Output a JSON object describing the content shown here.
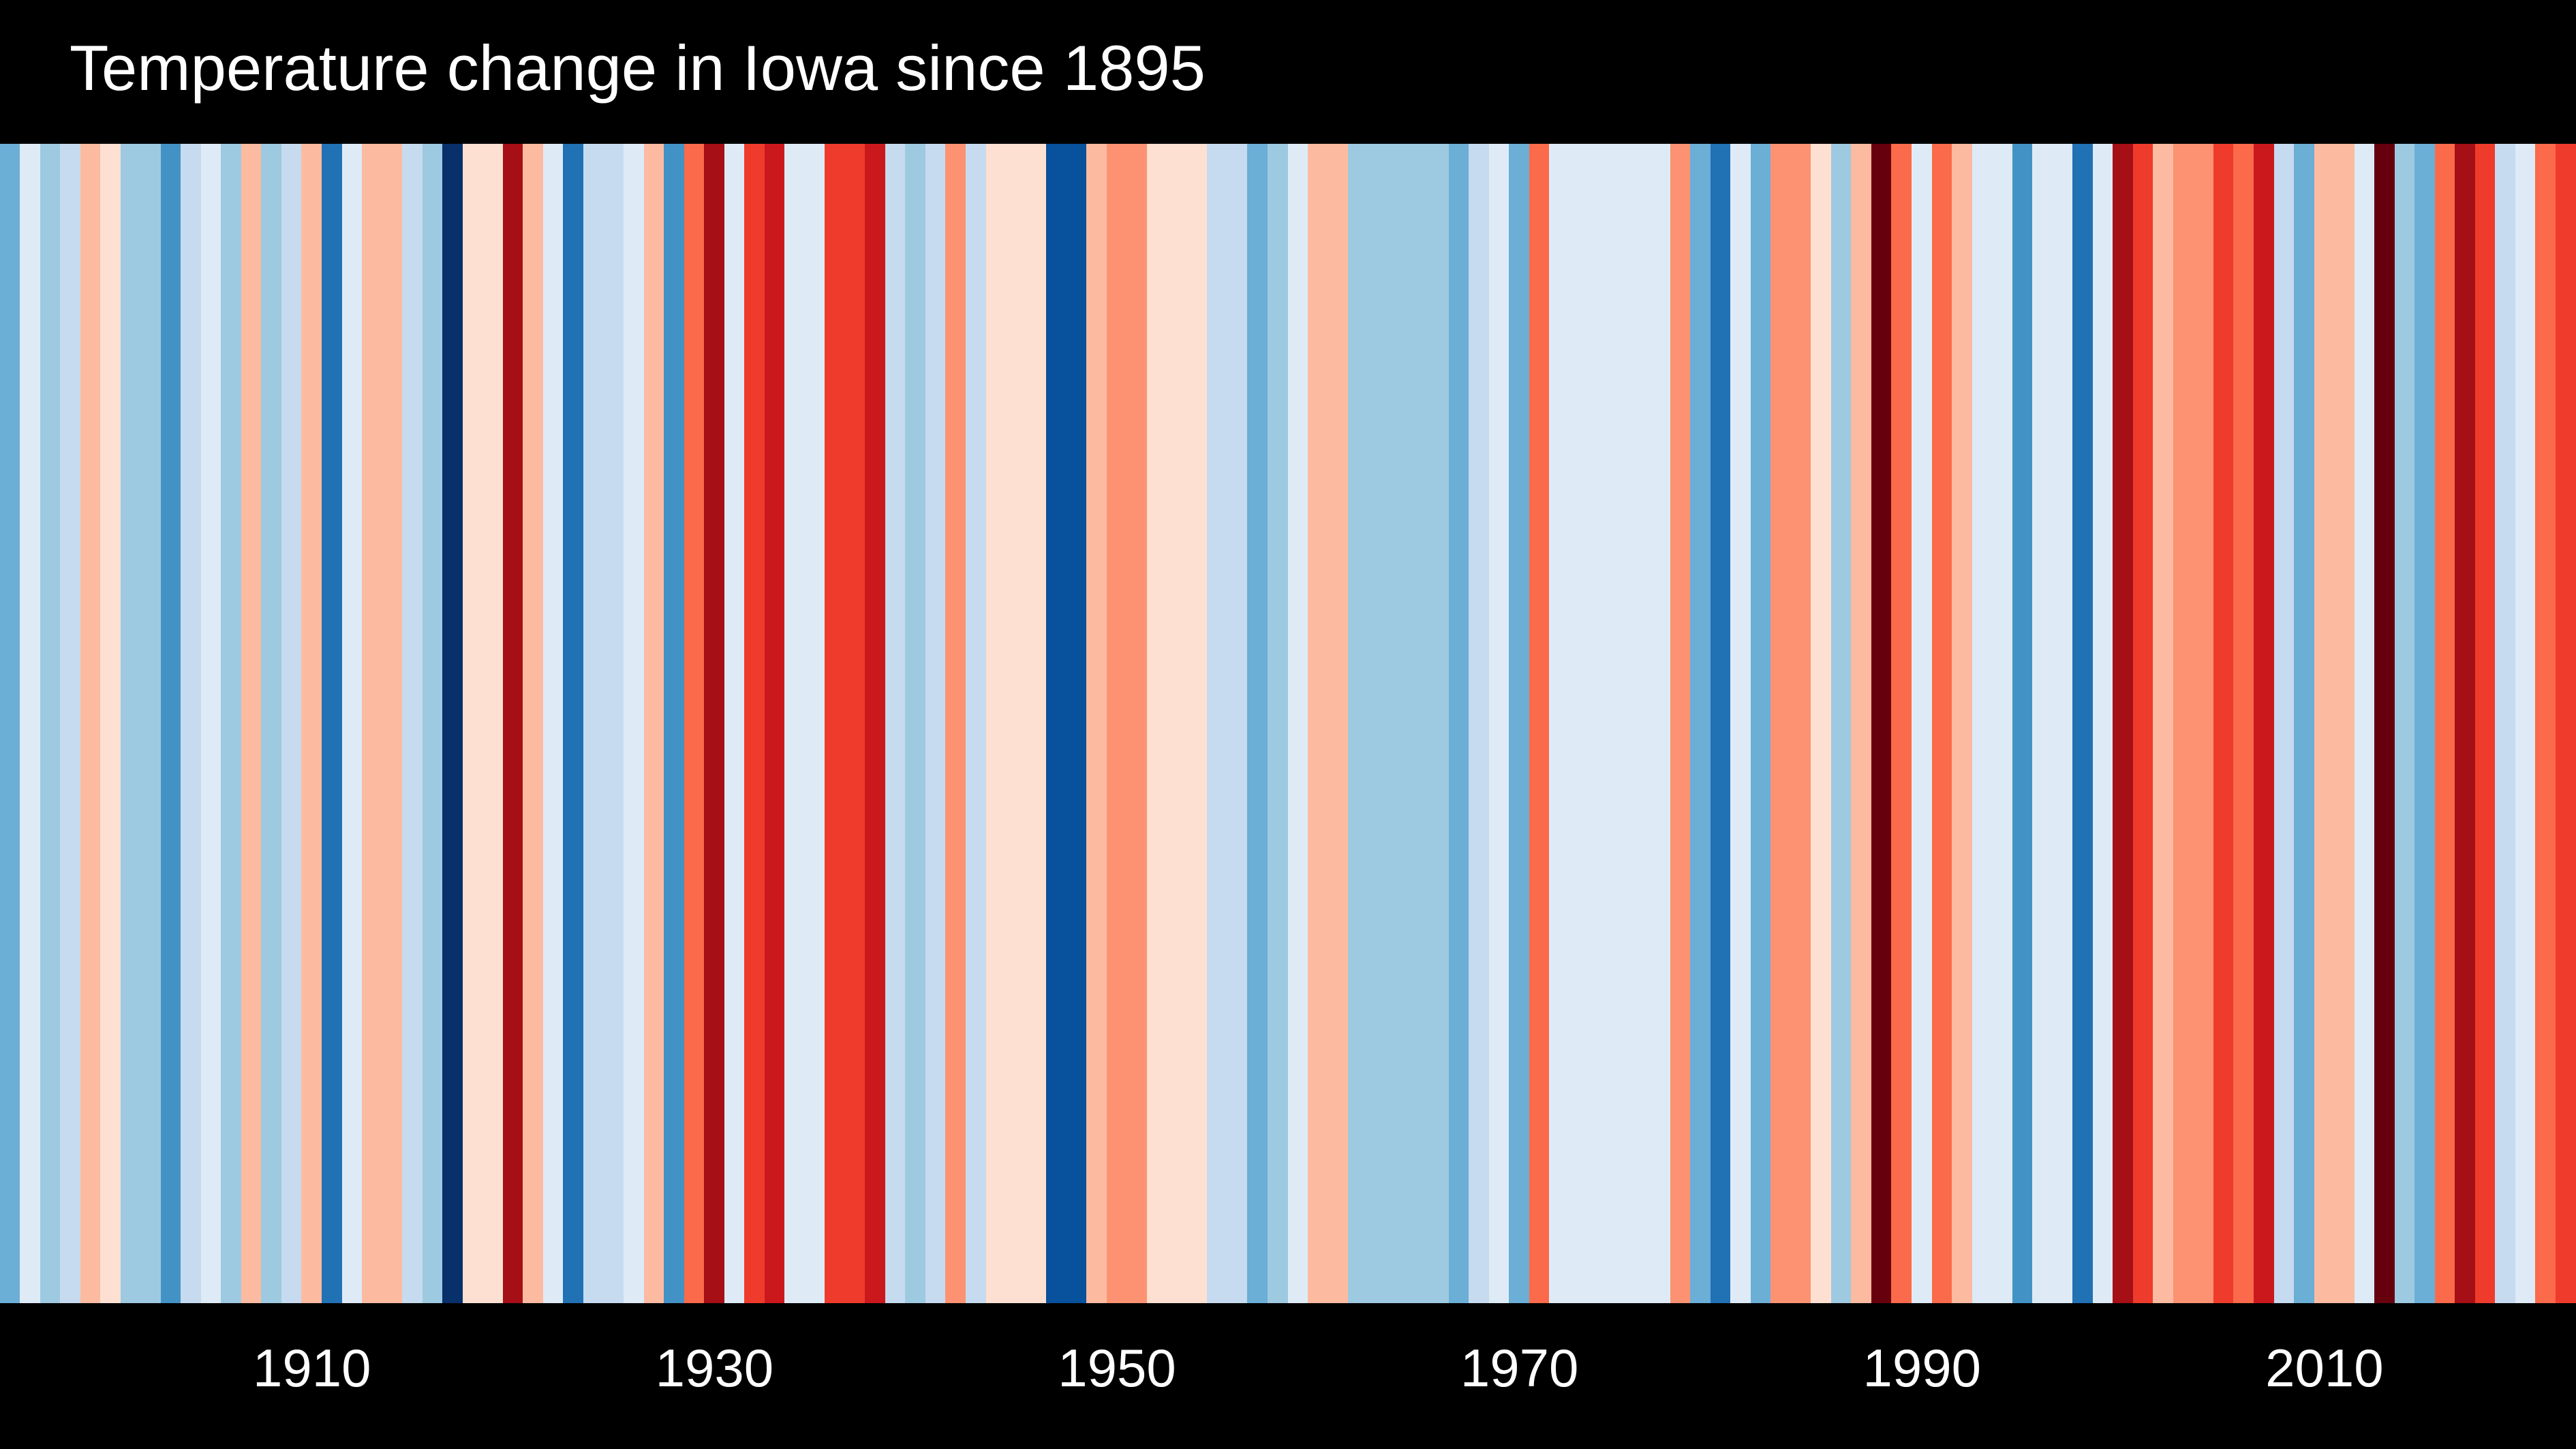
{
  "chart_data": {
    "type": "heatmap",
    "title": "Temperature change in Iowa since 1895",
    "xlabel": "",
    "ylabel": "",
    "x_range": [
      1895,
      2022
    ],
    "x_ticks": [
      1910,
      1930,
      1950,
      1970,
      1990,
      2010
    ],
    "tick_labels": [
      "1910",
      "1930",
      "1950",
      "1970",
      "1990",
      "2010"
    ],
    "colorscale": [
      "#08306b",
      "#08519c",
      "#2171b5",
      "#4292c6",
      "#6baed6",
      "#9ecae1",
      "#c6dbef",
      "#deebf7",
      "#fee0d2",
      "#fcbba1",
      "#fc9272",
      "#fb6a4a",
      "#ef3b2c",
      "#cb181d",
      "#a50f15",
      "#67000d"
    ],
    "years": [
      1895,
      1896,
      1897,
      1898,
      1899,
      1900,
      1901,
      1902,
      1903,
      1904,
      1905,
      1906,
      1907,
      1908,
      1909,
      1910,
      1911,
      1912,
      1913,
      1914,
      1915,
      1916,
      1917,
      1918,
      1919,
      1920,
      1921,
      1922,
      1923,
      1924,
      1925,
      1926,
      1927,
      1928,
      1929,
      1930,
      1931,
      1932,
      1933,
      1934,
      1935,
      1936,
      1937,
      1938,
      1939,
      1940,
      1941,
      1942,
      1943,
      1944,
      1945,
      1946,
      1947,
      1948,
      1949,
      1950,
      1951,
      1952,
      1953,
      1954,
      1955,
      1956,
      1957,
      1958,
      1959,
      1960,
      1961,
      1962,
      1963,
      1964,
      1965,
      1966,
      1967,
      1968,
      1969,
      1970,
      1971,
      1972,
      1973,
      1974,
      1975,
      1976,
      1977,
      1978,
      1979,
      1980,
      1981,
      1982,
      1983,
      1984,
      1985,
      1986,
      1987,
      1988,
      1989,
      1990,
      1991,
      1992,
      1993,
      1994,
      1995,
      1996,
      1997,
      1998,
      1999,
      2000,
      2001,
      2002,
      2003,
      2004,
      2005,
      2006,
      2007,
      2008,
      2009,
      2010,
      2011,
      2012,
      2013,
      2014,
      2015,
      2016,
      2017,
      2018,
      2019,
      2020,
      2021,
      2022
    ],
    "values": [
      4,
      7,
      5,
      6,
      9,
      8,
      5,
      5,
      3,
      6,
      7,
      5,
      9,
      5,
      6,
      9,
      2,
      7,
      9,
      9,
      6,
      5,
      0,
      8,
      8,
      14,
      9,
      7,
      2,
      6,
      6,
      7,
      9,
      3,
      11,
      14,
      7,
      12,
      13,
      7,
      7,
      12,
      12,
      13,
      6,
      5,
      6,
      10,
      6,
      8,
      8,
      8,
      1,
      1,
      9,
      10,
      10,
      8,
      8,
      8,
      6,
      6,
      4,
      5,
      7,
      9,
      9,
      5,
      5,
      5,
      5,
      5,
      4,
      6,
      7,
      4,
      11,
      7,
      7,
      7,
      7,
      7,
      7,
      10,
      4,
      2,
      7,
      4,
      10,
      10,
      8,
      5,
      9,
      15,
      11,
      7,
      11,
      9,
      7,
      7,
      3,
      7,
      7,
      2,
      7,
      14,
      12,
      9,
      10,
      10,
      12,
      11,
      13,
      6,
      4,
      9,
      9,
      7,
      15,
      5,
      4,
      11,
      14,
      12,
      6,
      7,
      11,
      12
    ],
    "value_units": "colour-scale step (0 = coldest, 15 = warmest)"
  }
}
